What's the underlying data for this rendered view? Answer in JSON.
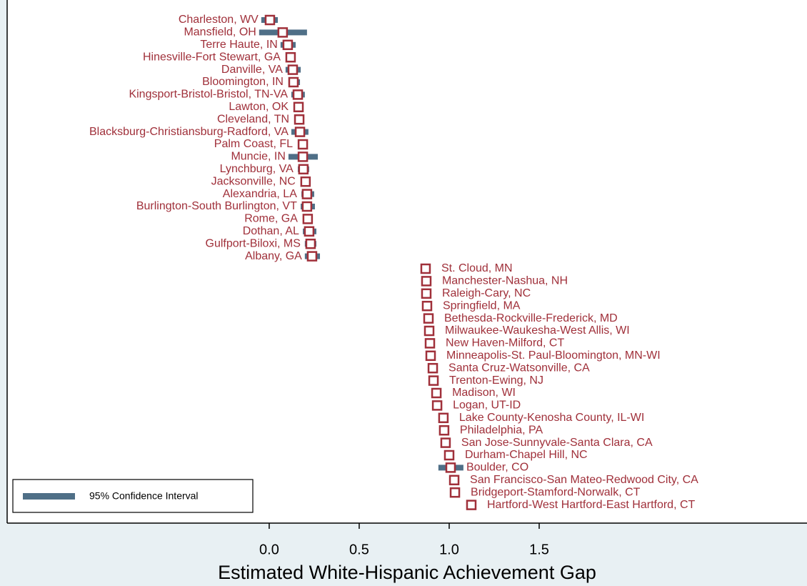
{
  "chart_data": {
    "type": "dot_ci",
    "x_label": "Estimated White-Hispanic Achievement Gap",
    "categories": [
      "Charleston, WV",
      "Mansfield, OH",
      "Terre Haute, IN",
      "Hinesville-Fort Stewart, GA",
      "Danville, VA",
      "Bloomington, IN",
      "Kingsport-Bristol-Bristol, TN-VA",
      "Lawton, OK",
      "Cleveland, TN",
      "Blacksburg-Christiansburg-Radford, VA",
      "Palm Coast, FL",
      "Muncie, IN",
      "Lynchburg, VA",
      "Jacksonville, NC",
      "Alexandria, LA",
      "Burlington-South Burlington, VT",
      "Rome, GA",
      "Dothan, AL",
      "Gulfport-Biloxi, MS",
      "Albany, GA",
      "St. Cloud, MN",
      "Manchester-Nashua, NH",
      "Raleigh-Cary, NC",
      "Springfield, MA",
      "Bethesda-Rockville-Frederick, MD",
      "Milwaukee-Waukesha-West Allis, WI",
      "New Haven-Milford, CT",
      "Minneapolis-St. Paul-Bloomington, MN-WI",
      "Santa Cruz-Watsonville, CA",
      "Trenton-Ewing, NJ",
      "Madison, WI",
      "Logan, UT-ID",
      "Lake County-Kenosha County, IL-WI",
      "Philadelphia, PA",
      "San Jose-Sunnyvale-Santa Clara, CA",
      "Durham-Chapel Hill, NC",
      "Boulder, CO",
      "San Francisco-San Mateo-Redwood City, CA",
      "Bridgeport-Stamford-Norwalk, CT",
      "Hartford-West Hartford-East Hartford, CT"
    ],
    "values": [
      0.004,
      0.075,
      0.103,
      0.119,
      0.131,
      0.135,
      0.159,
      0.163,
      0.167,
      0.171,
      0.187,
      0.187,
      0.19,
      0.202,
      0.21,
      0.21,
      0.214,
      0.222,
      0.23,
      0.238,
      0.869,
      0.873,
      0.873,
      0.877,
      0.885,
      0.889,
      0.893,
      0.897,
      0.909,
      0.913,
      0.929,
      0.933,
      0.968,
      0.972,
      0.98,
      1.0,
      1.008,
      1.028,
      1.032,
      1.123
    ],
    "ci_low": [
      -0.044,
      -0.056,
      0.063,
      0.095,
      0.091,
      0.107,
      0.123,
      0.139,
      0.143,
      0.123,
      0.163,
      0.107,
      0.159,
      0.179,
      0.179,
      0.175,
      0.19,
      0.187,
      0.198,
      0.198,
      0.857,
      0.861,
      0.861,
      0.865,
      0.873,
      0.877,
      0.881,
      0.885,
      0.897,
      0.901,
      0.917,
      0.921,
      0.956,
      0.96,
      0.968,
      0.988,
      0.94,
      1.016,
      1.02,
      1.111
    ],
    "ci_high": [
      0.048,
      0.21,
      0.147,
      0.143,
      0.175,
      0.171,
      0.198,
      0.187,
      0.194,
      0.218,
      0.214,
      0.27,
      0.222,
      0.23,
      0.25,
      0.254,
      0.238,
      0.262,
      0.262,
      0.282,
      0.881,
      0.885,
      0.885,
      0.889,
      0.897,
      0.901,
      0.905,
      0.909,
      0.921,
      0.925,
      0.941,
      0.945,
      0.98,
      0.984,
      0.992,
      1.012,
      1.079,
      1.04,
      1.044,
      1.135
    ],
    "marker_color": "#a0303a",
    "ci_color": "#4f6f87",
    "xlim": [
      -1.456,
      2.988
    ],
    "xticks": [
      {
        "value": 0,
        "label": "0.0"
      },
      0.5,
      {
        "value": 1,
        "label": "1.0"
      },
      1.5
    ],
    "legend": {
      "label": "95% Confidence Interval",
      "position": "lower left"
    }
  }
}
